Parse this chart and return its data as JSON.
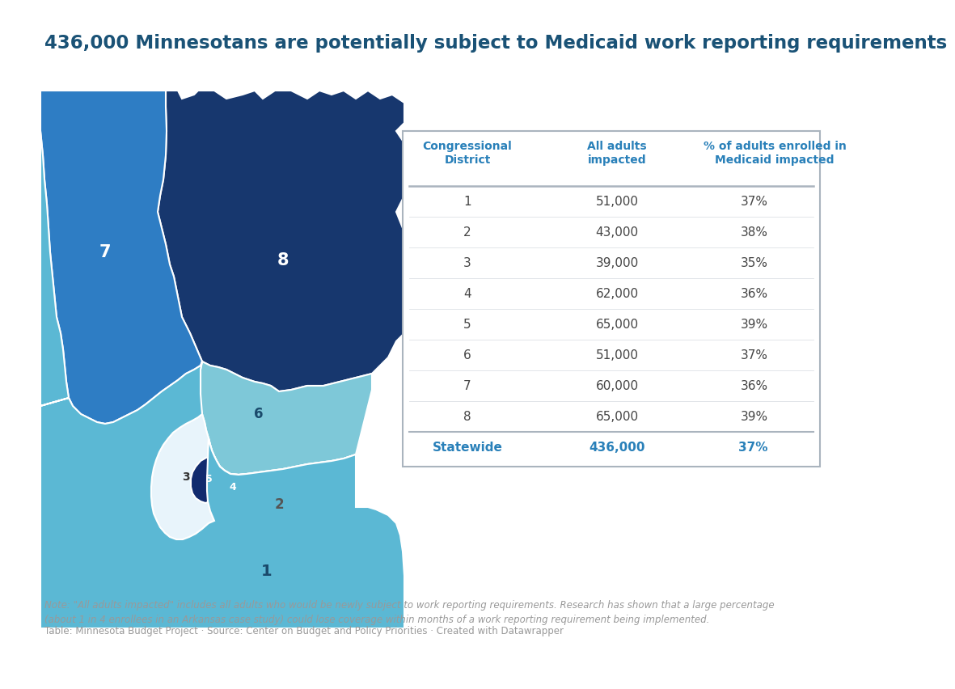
{
  "title": "436,000 Minnesotans are potentially subject to Medicaid work reporting requirements",
  "title_color": "#1a5276",
  "title_fontsize": 16.5,
  "background_color": "#ffffff",
  "table_header": [
    "Congressional\nDistrict",
    "All adults\nimpacted",
    "% of adults enrolled in\nMedicaid impacted"
  ],
  "table_rows": [
    [
      "1",
      "51,000",
      "37%"
    ],
    [
      "2",
      "43,000",
      "38%"
    ],
    [
      "3",
      "39,000",
      "35%"
    ],
    [
      "4",
      "62,000",
      "36%"
    ],
    [
      "5",
      "65,000",
      "39%"
    ],
    [
      "6",
      "51,000",
      "37%"
    ],
    [
      "7",
      "60,000",
      "36%"
    ],
    [
      "8",
      "65,000",
      "39%"
    ],
    [
      "Statewide",
      "436,000",
      "37%"
    ]
  ],
  "table_header_color": "#2980b9",
  "table_statewide_color": "#2980b9",
  "table_border_color": "#aab4be",
  "note_text": "Note: \"All adults impacted\" includes all adults who would be newly subject to work reporting requirements. Research has shown that a large percentage\n(about 1 in 4 enrollees in an Arkansas case study) could lose coverage within months of a work reporting requirement being implemented.",
  "source_text": "Table: Minnesota Budget Project · Source: Center on Budget and Policy Priorities · Created with Datawrapper",
  "note_color": "#999999",
  "district_colors": {
    "1": "#5bb8d4",
    "2": "#c8e6c0",
    "3": "#e8f4fb",
    "4": "#1b4f8a",
    "5": "#122b6e",
    "6": "#7ec8d8",
    "7": "#2e7dc4",
    "8": "#17376e"
  },
  "district_label_colors": {
    "1": "#1a4a6b",
    "2": "#555555",
    "3": "#333333",
    "4": "#ffffff",
    "5": "#ffffff",
    "6": "#1a4a6b",
    "7": "#ffffff",
    "8": "#ffffff"
  }
}
